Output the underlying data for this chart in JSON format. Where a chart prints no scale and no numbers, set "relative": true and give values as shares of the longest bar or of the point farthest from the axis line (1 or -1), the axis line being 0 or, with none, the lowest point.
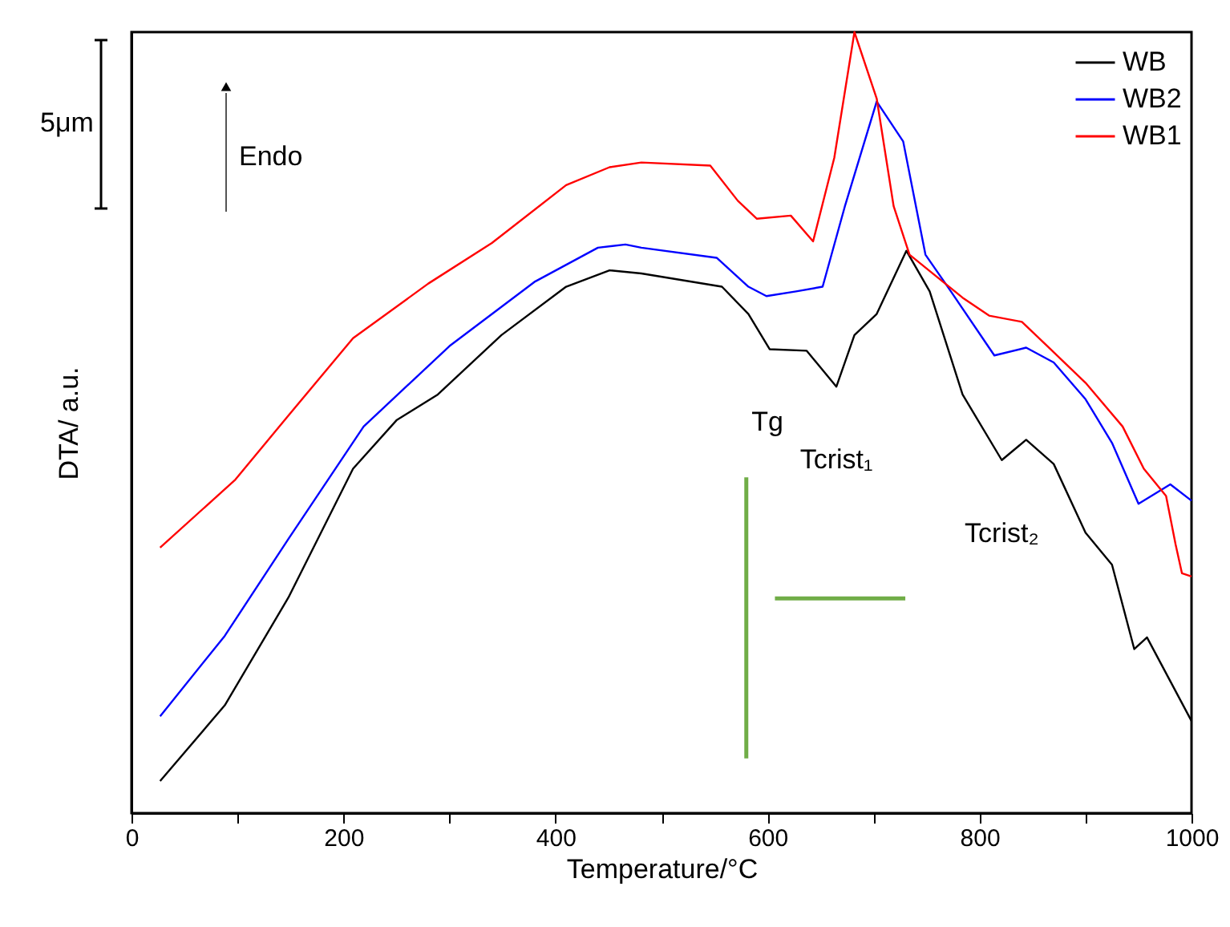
{
  "chart_data": {
    "type": "line",
    "relative": true,
    "xlabel": "Temperature/°C",
    "ylabel": "DTA/ a.u.",
    "xlim": [
      0,
      1000
    ],
    "xticks": [
      0,
      {
        "value": 100,
        "label": null
      },
      200,
      {
        "value": 300,
        "label": null
      },
      400,
      {
        "value": 500,
        "label": null
      },
      600,
      {
        "value": 700,
        "label": null
      },
      800,
      {
        "value": 900,
        "label": null
      },
      1000
    ],
    "legend": "top right",
    "grid": false,
    "marker": "none",
    "line_style": "solid",
    "series": [
      {
        "name": "WB",
        "color": "#000000",
        "x": [
          27,
          88,
          148,
          209,
          250,
          289,
          349,
          410,
          451,
          481,
          557,
          582,
          602,
          637,
          665,
          682,
          703,
          731,
          753,
          784,
          821,
          844,
          870,
          900,
          925,
          946,
          958,
          1000
        ],
        "values": [
          0.041,
          0.138,
          0.276,
          0.441,
          0.503,
          0.536,
          0.612,
          0.674,
          0.695,
          0.691,
          0.674,
          0.639,
          0.594,
          0.592,
          0.546,
          0.612,
          0.639,
          0.72,
          0.668,
          0.536,
          0.452,
          0.478,
          0.447,
          0.359,
          0.318,
          0.21,
          0.225,
          0.118
        ]
      },
      {
        "name": "WB2",
        "color": "#0000ff",
        "x": [
          27,
          88,
          148,
          219,
          300,
          380,
          440,
          466,
          481,
          552,
          582,
          599,
          627,
          652,
          673,
          703,
          728,
          749,
          773,
          814,
          844,
          870,
          900,
          925,
          950,
          980,
          1000
        ],
        "values": [
          0.124,
          0.227,
          0.351,
          0.495,
          0.598,
          0.68,
          0.724,
          0.728,
          0.724,
          0.711,
          0.674,
          0.662,
          0.668,
          0.674,
          0.777,
          0.911,
          0.86,
          0.715,
          0.668,
          0.586,
          0.596,
          0.577,
          0.53,
          0.474,
          0.396,
          0.421,
          0.4
        ]
      },
      {
        "name": "WB1",
        "color": "#ff0000",
        "x": [
          27,
          98,
          148,
          209,
          280,
          340,
          410,
          451,
          481,
          546,
          572,
          590,
          622,
          643,
          663,
          682,
          703,
          719,
          734,
          784,
          809,
          840,
          864,
          900,
          935,
          955,
          976,
          985,
          991,
          1000
        ],
        "values": [
          0.34,
          0.427,
          0.509,
          0.608,
          0.678,
          0.73,
          0.804,
          0.827,
          0.833,
          0.829,
          0.784,
          0.761,
          0.765,
          0.732,
          0.839,
          1.0,
          0.915,
          0.777,
          0.715,
          0.66,
          0.637,
          0.629,
          0.598,
          0.551,
          0.495,
          0.441,
          0.406,
          0.344,
          0.307,
          0.303
        ]
      },
      {
        "type": "line",
        "color": "#70ad47",
        "x": [
          580,
          580
        ],
        "values": [
          0.07,
          0.43
        ]
      },
      {
        "type": "line",
        "color": "#70ad47",
        "x": [
          730,
          607
        ],
        "values": [
          0.275,
          0.275
        ]
      }
    ],
    "annotations": [
      "5μm",
      "Endo",
      {
        "text": "Tg",
        "x": 600,
        "y": 0.594
      },
      {
        "text": "Tcrist₁",
        "x": 665,
        "y": 0.546
      },
      {
        "text": "Tcrist₂",
        "x": 821,
        "y": 0.452
      }
    ]
  }
}
